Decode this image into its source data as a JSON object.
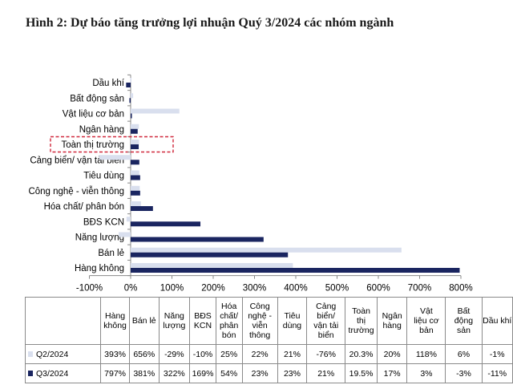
{
  "title": "Hình 2: Dự báo tăng trưởng lợi nhuận Quý 3/2024 các nhóm ngành",
  "colors": {
    "q2": "#d9dfee",
    "q3": "#1a2560",
    "highlight": "#d0283c",
    "grid": "#cccccc"
  },
  "chart_data": {
    "type": "bar",
    "orientation": "horizontal",
    "categories": [
      "Dầu khí",
      "Bất động sản",
      "Vật liệu cơ bản",
      "Ngân hàng",
      "Toàn thị trường",
      "Cảng biển/ vận tải biển",
      "Tiêu dùng",
      "Công nghệ - viễn thông",
      "Hóa chất/ phân bón",
      "BĐS KCN",
      "Năng lượng",
      "Bán lẻ",
      "Hàng không"
    ],
    "series": [
      {
        "name": "Q2/2024",
        "values": [
          -1,
          6,
          118,
          20,
          20.3,
          -76,
          21,
          22,
          25,
          -10,
          -29,
          656,
          393
        ]
      },
      {
        "name": "Q3/2024",
        "values": [
          -11,
          -3,
          3,
          17,
          19.5,
          21,
          23,
          23,
          54,
          169,
          322,
          381,
          797
        ]
      }
    ],
    "xlim": [
      -100,
      800
    ],
    "x_ticks": [
      "-100%",
      "0%",
      "100%",
      "200%",
      "300%",
      "400%",
      "500%",
      "600%",
      "700%",
      "800%"
    ],
    "highlighted_category": "Toàn thị trường",
    "grid": false,
    "legend": "table below chart"
  },
  "table": {
    "headers": [
      "Hàng\nkhông",
      "Bán lẻ",
      "Năng\nlượng",
      "BĐS\nKCN",
      "Hóa\nchất/\nphân\nbón",
      "Công\nnghệ -\nviễn\nthông",
      "Tiêu\ndùng",
      "Cảng\nbiển/\nvận tải\nbiển",
      "Toàn\nthị\ntrường",
      "Ngân\nhàng",
      "Vật\nliệu cơ\nbản",
      "Bất\nđộng\nsản",
      "Dầu khí"
    ],
    "rows": [
      {
        "label": "Q2/2024",
        "values": [
          "393%",
          "656%",
          "-29%",
          "-10%",
          "25%",
          "22%",
          "21%",
          "-76%",
          "20.3%",
          "20%",
          "118%",
          "6%",
          "-1%"
        ]
      },
      {
        "label": "Q3/2024",
        "values": [
          "797%",
          "381%",
          "322%",
          "169%",
          "54%",
          "23%",
          "23%",
          "21%",
          "19.5%",
          "17%",
          "3%",
          "-3%",
          "-11%"
        ]
      }
    ]
  }
}
